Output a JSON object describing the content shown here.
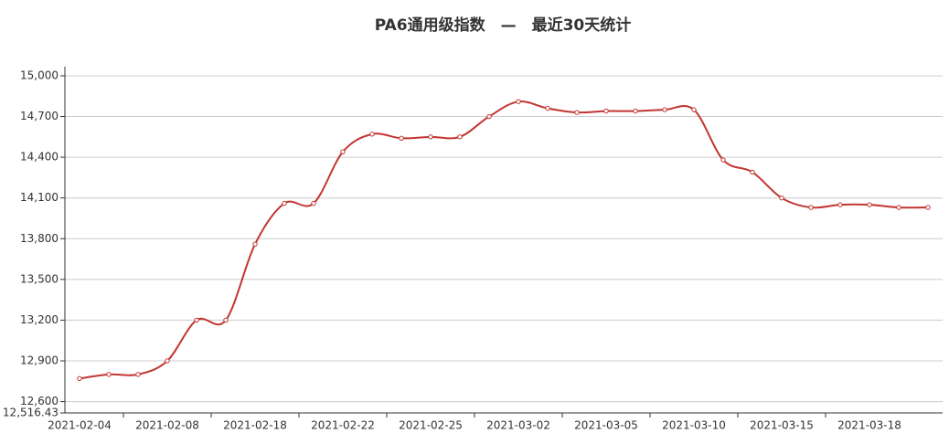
{
  "chart_data": {
    "type": "line",
    "title": "PA6通用级指数　—　最近30天统计",
    "categories": [
      "2021-02-04",
      null,
      null,
      "2021-02-08",
      null,
      null,
      "2021-02-18",
      null,
      null,
      "2021-02-22",
      null,
      null,
      "2021-02-25",
      null,
      null,
      "2021-03-02",
      null,
      null,
      "2021-03-05",
      null,
      null,
      "2021-03-10",
      null,
      null,
      "2021-03-15",
      null,
      null,
      "2021-03-18",
      null,
      null
    ],
    "series": [
      {
        "name": "PA6通用级指数",
        "color": "#c23531",
        "values": [
          12770,
          12800,
          12800,
          12900,
          13200,
          13200,
          13760,
          14060,
          14060,
          14440,
          14570,
          14540,
          14550,
          14550,
          14700,
          14810,
          14760,
          14730,
          14740,
          14740,
          14750,
          14750,
          14380,
          14290,
          14100,
          14030,
          14050,
          14050,
          14030,
          14030
        ]
      }
    ],
    "ylim": [
      12516.43,
      15067
    ],
    "yticks": [
      {
        "value": 12516.43,
        "label": "12,516.43"
      },
      {
        "value": 12600,
        "label": "12,600"
      },
      {
        "value": 12900,
        "label": "12,900"
      },
      {
        "value": 13200,
        "label": "13,200"
      },
      {
        "value": 13500,
        "label": "13,500"
      },
      {
        "value": 13800,
        "label": "13,800"
      },
      {
        "value": 14100,
        "label": "14,100"
      },
      {
        "value": 14400,
        "label": "14,400"
      },
      {
        "value": 14700,
        "label": "14,700"
      },
      {
        "value": 15000,
        "label": "15,000"
      }
    ],
    "grid": true,
    "smooth": true
  }
}
